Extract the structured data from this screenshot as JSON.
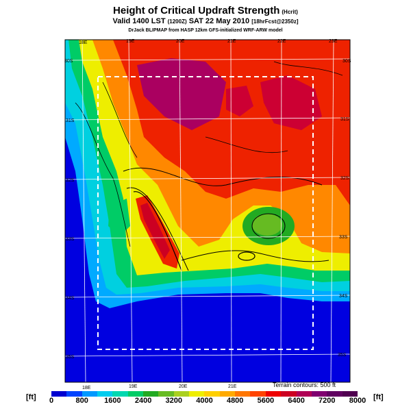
{
  "header": {
    "title": "Height of Critical Updraft Strength",
    "title_units": "(Hcrit)",
    "valid_main": "Valid 1400 LST",
    "valid_z": "(1200Z)",
    "valid_date": "SAT 22 May 2010",
    "valid_fcst": "[18hrFcst@2350z]",
    "source": "DrJack BLIPMAP from HASP 12km GFS-initialized WRF-ARW model"
  },
  "map": {
    "lon_labels_top": [
      "18E",
      "19E",
      "20E",
      "21E",
      "22E",
      "23E"
    ],
    "lon_labels_bottom": [
      "18E",
      "19E",
      "20E",
      "21E"
    ],
    "lat_labels_left": [
      "30S",
      "31S",
      "32S",
      "33S",
      "34S",
      "35S"
    ],
    "lat_labels_right": [
      "30S",
      "31S",
      "32S",
      "33S",
      "34S",
      "35S"
    ],
    "terrain_note": "Terrain contours: 500 ft"
  },
  "colorbar": {
    "unit_left": "[ft]",
    "unit_right": "[ft]",
    "ticks": [
      "0",
      "800",
      "1600",
      "2400",
      "3200",
      "4000",
      "4800",
      "5600",
      "6400",
      "7200",
      "8000"
    ],
    "colors": [
      "#0000d0",
      "#0044ff",
      "#0099ff",
      "#00ccee",
      "#00d8b0",
      "#00cc66",
      "#22aa22",
      "#66bb22",
      "#aad020",
      "#eeee00",
      "#ffd000",
      "#ffaa00",
      "#ff7700",
      "#ff4400",
      "#ee0000",
      "#cc0022",
      "#b00055",
      "#800070",
      "#600060",
      "#500050"
    ]
  }
}
